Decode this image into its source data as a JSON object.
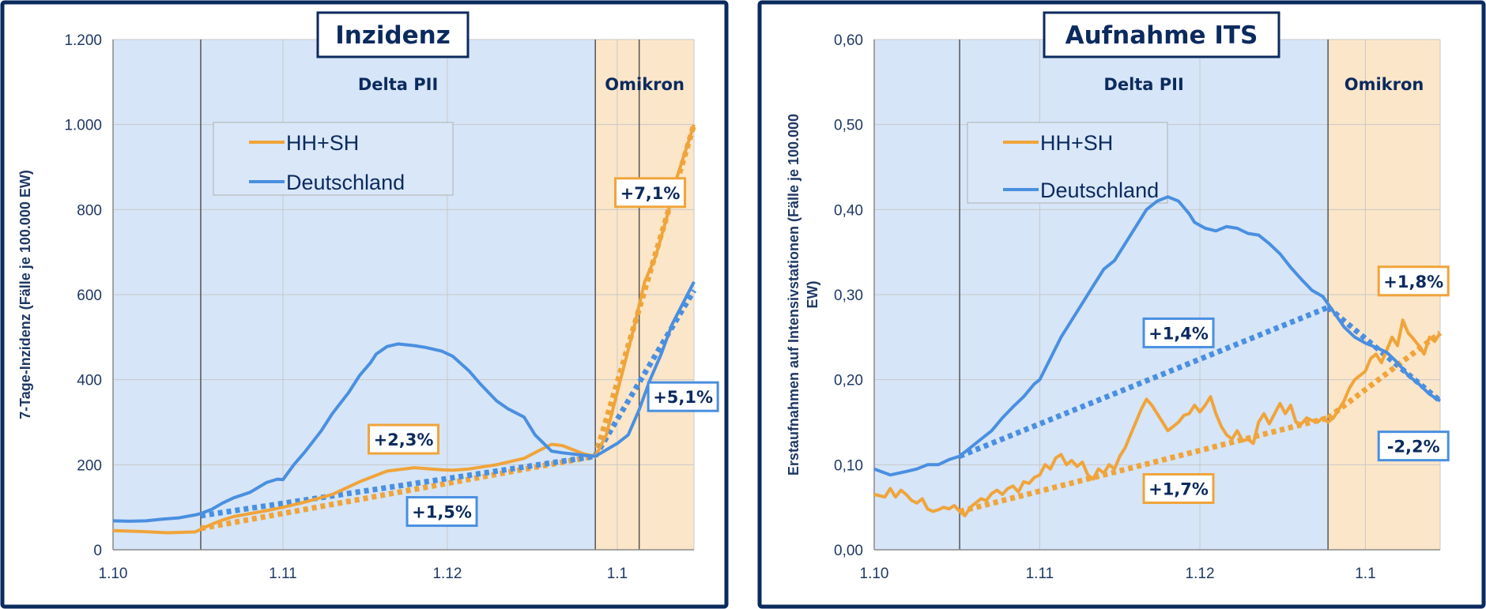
{
  "colors": {
    "hh": "#f0a43a",
    "de": "#4a8fe0",
    "delta_bg": "#d6e5f7",
    "omikron_bg": "#fbe6c9",
    "phase_line": "#555555"
  },
  "chart_data": [
    {
      "type": "line",
      "title": "Inzidenz",
      "ylabel": "7-Tage-Inzidenz (Fälle je 100.000 EW)",
      "xlabel": "",
      "ylim": [
        0,
        1200
      ],
      "yticks": [
        0,
        200,
        400,
        600,
        800,
        1000,
        1200
      ],
      "ytick_labels": [
        "0",
        "200",
        "400",
        "600",
        "800",
        "1.000",
        "1.200"
      ],
      "xlim": [
        0,
        106
      ],
      "xticks": [
        0,
        31,
        61,
        92
      ],
      "xtick_labels": [
        "1.10",
        "1.11",
        "1.12",
        "1.1"
      ],
      "grid": true,
      "phases": [
        {
          "label": "Delta PII",
          "start": 16,
          "end": 88,
          "kind": "delta"
        },
        {
          "label": "Omikron",
          "start": 88,
          "end": 106,
          "kind": "omikron"
        }
      ],
      "phase_markers": [
        16,
        88,
        96
      ],
      "legend": {
        "position": "top-left",
        "entries": [
          {
            "name": "HH+SH",
            "series": "hh"
          },
          {
            "name": "Deutschland",
            "series": "de"
          }
        ]
      },
      "series": [
        {
          "name": "HH+SH",
          "key": "hh",
          "x": [
            0,
            5,
            10,
            15,
            16,
            18,
            20,
            22,
            25,
            28,
            31,
            35,
            40,
            45,
            50,
            55,
            58,
            60,
            62,
            65,
            70,
            75,
            78,
            80,
            82,
            85,
            86,
            88,
            90,
            92,
            95,
            97,
            99,
            101,
            103,
            106
          ],
          "y": [
            45,
            43,
            40,
            42,
            48,
            60,
            70,
            78,
            85,
            92,
            100,
            112,
            130,
            160,
            185,
            193,
            190,
            188,
            187,
            190,
            200,
            215,
            235,
            248,
            245,
            230,
            225,
            220,
            270,
            370,
            520,
            630,
            690,
            780,
            880,
            1000
          ]
        },
        {
          "name": "Deutschland",
          "key": "de",
          "x": [
            0,
            3,
            6,
            9,
            12,
            15,
            16,
            18,
            20,
            22,
            25,
            28,
            30,
            31,
            33,
            35,
            38,
            40,
            43,
            45,
            47,
            48,
            50,
            52,
            55,
            57,
            60,
            62,
            65,
            67,
            70,
            72,
            75,
            77,
            80,
            82,
            84,
            86,
            88,
            90,
            92,
            94,
            96,
            98,
            100,
            102,
            104,
            106
          ],
          "y": [
            68,
            67,
            68,
            72,
            75,
            82,
            85,
            95,
            110,
            122,
            135,
            158,
            166,
            165,
            200,
            230,
            280,
            320,
            370,
            410,
            440,
            460,
            478,
            484,
            480,
            476,
            467,
            455,
            420,
            390,
            350,
            332,
            312,
            270,
            232,
            228,
            225,
            222,
            220,
            235,
            250,
            270,
            330,
            400,
            460,
            530,
            580,
            630
          ]
        }
      ],
      "trends": [
        {
          "series": "hh",
          "x": [
            16,
            88
          ],
          "y": [
            50,
            220
          ]
        },
        {
          "series": "de",
          "x": [
            16,
            88
          ],
          "y": [
            80,
            220
          ]
        },
        {
          "series": "hh",
          "x": [
            88,
            106
          ],
          "y": [
            220,
            1000
          ]
        },
        {
          "series": "de",
          "x": [
            88,
            106
          ],
          "y": [
            220,
            610
          ]
        }
      ],
      "annotations": [
        {
          "text": "+2,3%",
          "series": "hh",
          "x": 53,
          "y": 260
        },
        {
          "text": "+1,5%",
          "series": "de",
          "x": 60,
          "y": 90
        },
        {
          "text": "+7,1%",
          "series": "hh",
          "x": 98,
          "y": 840
        },
        {
          "text": "+5,1%",
          "series": "de",
          "x": 104,
          "y": 360
        }
      ]
    },
    {
      "type": "line",
      "title": "Aufnahme ITS",
      "ylabel": "Erstaufnahmen auf Intensivstationen (Fälle je 100.000 EW)",
      "xlabel": "",
      "ylim": [
        0,
        0.6
      ],
      "yticks": [
        0,
        0.1,
        0.2,
        0.3,
        0.4,
        0.5,
        0.6
      ],
      "ytick_labels": [
        "0,00",
        "0,10",
        "0,20",
        "0,30",
        "0,40",
        "0,50",
        "0,60"
      ],
      "xlim": [
        0,
        106
      ],
      "xticks": [
        0,
        31,
        61,
        92
      ],
      "xtick_labels": [
        "1.10",
        "1.11",
        "1.12",
        "1.1"
      ],
      "grid": true,
      "phases": [
        {
          "label": "Delta PII",
          "start": 16,
          "end": 85,
          "kind": "delta"
        },
        {
          "label": "Omikron",
          "start": 85,
          "end": 106,
          "kind": "omikron"
        }
      ],
      "phase_markers": [
        16,
        85
      ],
      "legend": {
        "position": "top-left",
        "entries": [
          {
            "name": "HH+SH",
            "series": "hh"
          },
          {
            "name": "Deutschland",
            "series": "de"
          }
        ]
      },
      "series": [
        {
          "name": "HH+SH",
          "key": "hh",
          "x": [
            0,
            2,
            3,
            4,
            5,
            6,
            7,
            8,
            9,
            10,
            11,
            12,
            13,
            14,
            15,
            16,
            17,
            18,
            19,
            20,
            21,
            22,
            23,
            24,
            25,
            26,
            27,
            28,
            29,
            30,
            31,
            32,
            33,
            34,
            35,
            36,
            37,
            38,
            39,
            40,
            41,
            42,
            43,
            44,
            45,
            46,
            47,
            48,
            49,
            50,
            51,
            52,
            53,
            54,
            55,
            56,
            57,
            58,
            59,
            60,
            61,
            62,
            63,
            64,
            65,
            66,
            67,
            68,
            69,
            70,
            71,
            72,
            73,
            74,
            75,
            76,
            77,
            78,
            79,
            80,
            81,
            82,
            83,
            84,
            85,
            86,
            87,
            88,
            89,
            90,
            91,
            92,
            93,
            94,
            95,
            96,
            97,
            98,
            99,
            100,
            101,
            102,
            103,
            104,
            105,
            106
          ],
          "y": [
            0.065,
            0.062,
            0.072,
            0.062,
            0.07,
            0.065,
            0.058,
            0.055,
            0.06,
            0.048,
            0.045,
            0.047,
            0.05,
            0.048,
            0.052,
            0.045,
            0.04,
            0.05,
            0.055,
            0.06,
            0.058,
            0.066,
            0.07,
            0.065,
            0.072,
            0.075,
            0.068,
            0.08,
            0.078,
            0.085,
            0.088,
            0.1,
            0.095,
            0.108,
            0.112,
            0.1,
            0.105,
            0.098,
            0.103,
            0.088,
            0.083,
            0.095,
            0.09,
            0.1,
            0.095,
            0.11,
            0.12,
            0.135,
            0.15,
            0.165,
            0.177,
            0.17,
            0.16,
            0.15,
            0.14,
            0.145,
            0.15,
            0.158,
            0.16,
            0.17,
            0.162,
            0.17,
            0.18,
            0.16,
            0.145,
            0.135,
            0.13,
            0.14,
            0.128,
            0.13,
            0.125,
            0.15,
            0.16,
            0.148,
            0.16,
            0.172,
            0.16,
            0.17,
            0.15,
            0.148,
            0.155,
            0.152,
            0.15,
            0.155,
            0.15,
            0.155,
            0.165,
            0.175,
            0.19,
            0.2,
            0.205,
            0.21,
            0.225,
            0.23,
            0.22,
            0.235,
            0.25,
            0.24,
            0.27,
            0.255,
            0.248,
            0.24,
            0.23,
            0.25,
            0.245,
            0.255
          ]
        },
        {
          "name": "Deutschland",
          "key": "de",
          "x": [
            0,
            3,
            6,
            8,
            10,
            12,
            14,
            16,
            18,
            20,
            22,
            24,
            26,
            28,
            30,
            31,
            33,
            35,
            37,
            39,
            41,
            43,
            45,
            47,
            49,
            51,
            53,
            55,
            57,
            59,
            60,
            62,
            64,
            66,
            68,
            70,
            72,
            74,
            76,
            78,
            80,
            82,
            84,
            86,
            88,
            90,
            92,
            94,
            96,
            98,
            100,
            102,
            104,
            106
          ],
          "y": [
            0.095,
            0.088,
            0.092,
            0.095,
            0.1,
            0.1,
            0.106,
            0.11,
            0.12,
            0.13,
            0.14,
            0.155,
            0.168,
            0.18,
            0.195,
            0.2,
            0.225,
            0.25,
            0.27,
            0.29,
            0.31,
            0.33,
            0.34,
            0.36,
            0.38,
            0.4,
            0.41,
            0.415,
            0.41,
            0.395,
            0.385,
            0.378,
            0.375,
            0.38,
            0.378,
            0.372,
            0.37,
            0.36,
            0.348,
            0.332,
            0.318,
            0.305,
            0.298,
            0.28,
            0.262,
            0.25,
            0.243,
            0.238,
            0.232,
            0.22,
            0.205,
            0.195,
            0.183,
            0.175
          ]
        }
      ],
      "trends": [
        {
          "series": "de",
          "x": [
            16,
            85
          ],
          "y": [
            0.11,
            0.285
          ]
        },
        {
          "series": "hh",
          "x": [
            16,
            85
          ],
          "y": [
            0.045,
            0.155
          ]
        },
        {
          "series": "de",
          "x": [
            85,
            106
          ],
          "y": [
            0.285,
            0.175
          ]
        },
        {
          "series": "hh",
          "x": [
            85,
            106
          ],
          "y": [
            0.155,
            0.255
          ]
        }
      ],
      "annotations": [
        {
          "text": "+1,4%",
          "series": "de",
          "x": 57,
          "y": 0.255
        },
        {
          "text": "+1,7%",
          "series": "hh",
          "x": 57,
          "y": 0.072
        },
        {
          "text": "+1,8%",
          "series": "hh",
          "x": 101,
          "y": 0.316
        },
        {
          "text": "-2,2%",
          "series": "de",
          "x": 101,
          "y": 0.122
        }
      ]
    }
  ]
}
